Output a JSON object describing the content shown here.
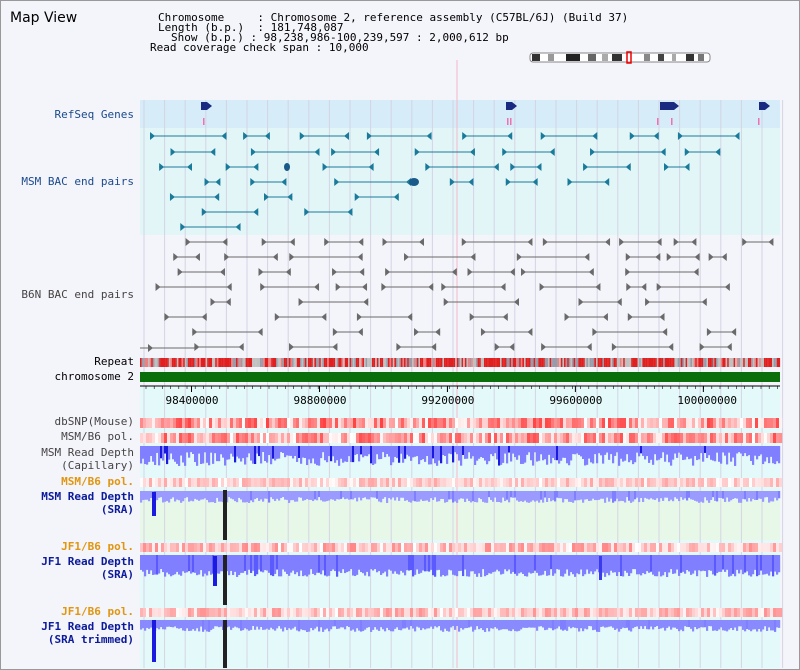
{
  "title": "Map View",
  "info": {
    "chromosome_label": "Chromosome",
    "chromosome_value": "Chromosome 2, reference assembly (C57BL/6J) (Build 37)",
    "length_label": "Length (b.p.)",
    "length_value": "181,748,087",
    "show_label": "Show (b.p.)",
    "show_value": "98,238,986-100,239,597 : 2,000,612 bp",
    "coverage_label": "Read coverage check span",
    "coverage_value": "10,000"
  },
  "tracks": {
    "refseq": "RefSeq Genes",
    "msm_bac": "MSM BAC end pairs",
    "b6n_bac": "B6N BAC end pairs",
    "repeat": "Repeat",
    "chromosome": "chromosome 2",
    "dbsnp": "dbSNP(Mouse)",
    "msm_b6_pol_1": "MSM/B6 pol.",
    "msm_depth_cap_1": "MSM Read Depth",
    "msm_depth_cap_2": "(Capillary)",
    "msm_b6_pol_2": "MSM/B6 pol.",
    "msm_depth_sra_1": "MSM Read Depth",
    "msm_depth_sra_2": "(SRA)",
    "jf1_b6_pol_1": "JF1/B6 pol.",
    "jf1_depth_sra_1": "JF1 Read Depth",
    "jf1_depth_sra_2": "(SRA)",
    "jf1_b6_pol_2": "JF1/B6 pol.",
    "jf1_depth_trim_1": "JF1 Read Depth",
    "jf1_depth_trim_2": "(SRA trimmed)"
  },
  "axis": {
    "ticks": [
      "98400000",
      "98800000",
      "99200000",
      "99600000",
      "100000000"
    ],
    "tick_values": [
      98400000,
      98800000,
      99200000,
      99600000,
      100000000
    ],
    "start": 98238986,
    "end": 100239597
  },
  "colors": {
    "refseq_bg": "#d6ecf8",
    "bac_bg": "#e2f6f8",
    "pol_red": "#e8202a",
    "pol_light": "#ffd0d0",
    "depth_blue": "#7f7fff",
    "depth_dark": "#1a1ae0",
    "chromosome_green": "#0a6e0a",
    "msm_teal": "#1a7a9a"
  }
}
